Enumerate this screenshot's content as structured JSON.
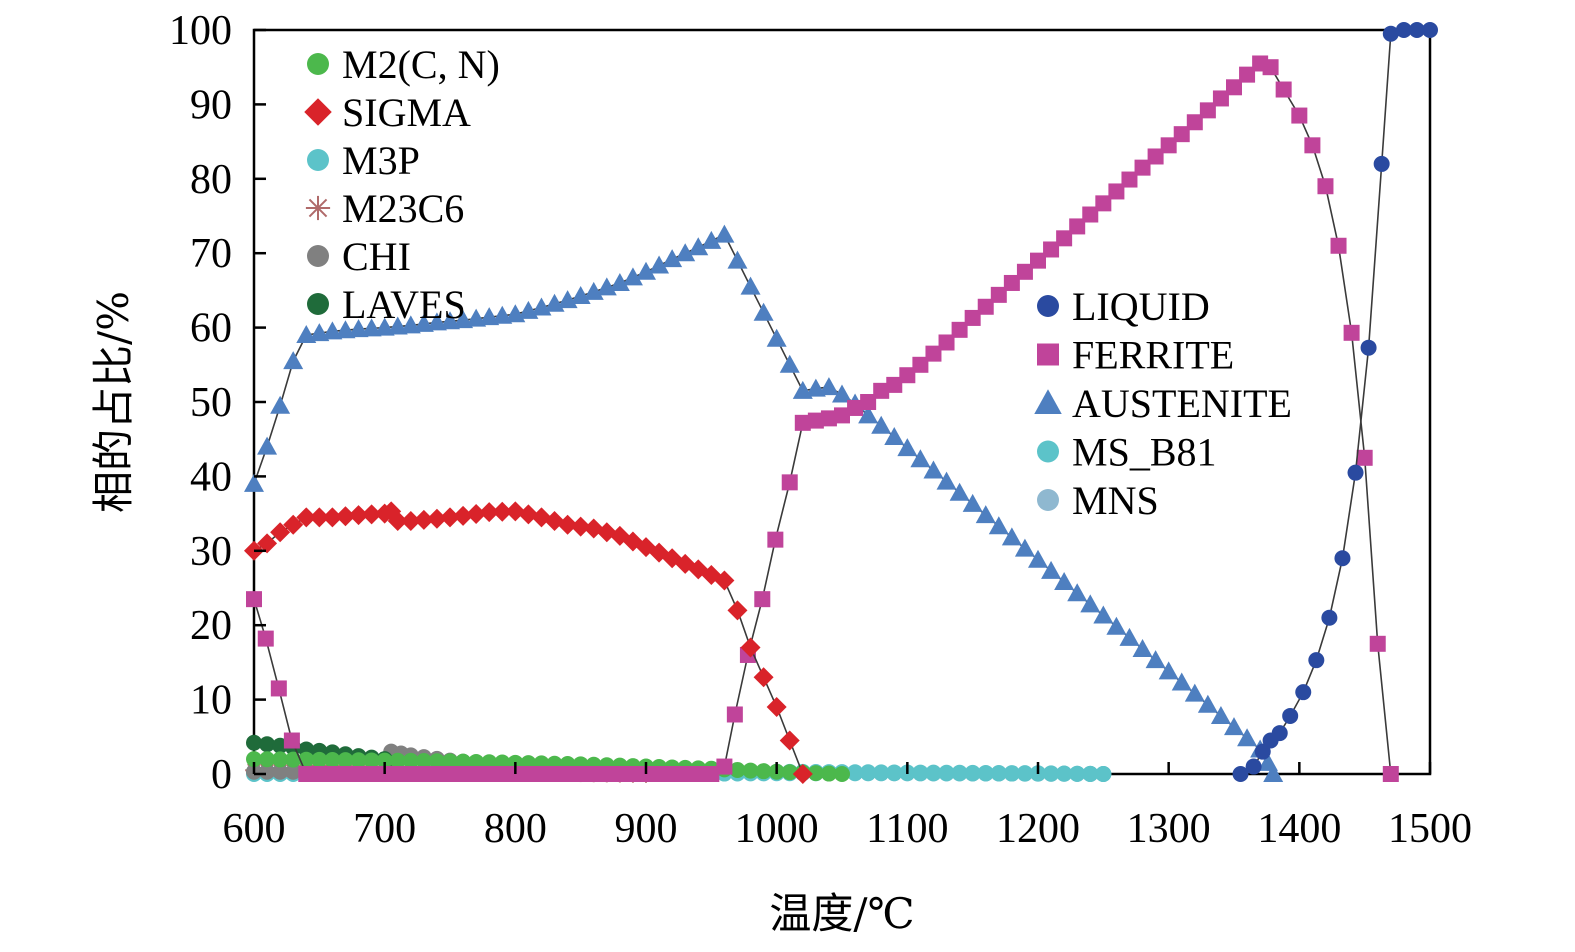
{
  "chart_data": {
    "type": "line",
    "xlabel": "温度/℃",
    "ylabel": "相的占比/%",
    "xlim": [
      600,
      1500
    ],
    "ylim": [
      0,
      100
    ],
    "xticks": [
      "600",
      "700",
      "800",
      "900",
      "1000",
      "1100",
      "1200",
      "1300",
      "1400",
      "1500"
    ],
    "yticks": [
      "0",
      "10",
      "20",
      "30",
      "40",
      "50",
      "60",
      "70",
      "80",
      "90",
      "100"
    ],
    "grid": false,
    "legends": [
      {
        "placement": "top-left",
        "entries": [
          "M2(C, N)",
          "SIGMA",
          "M3P",
          "M23C6",
          "CHI",
          "LAVES"
        ]
      },
      {
        "placement": "center-right",
        "entries": [
          "LIQUID",
          "FERRITE",
          "AUSTENITE",
          "MS_B81",
          "MNS"
        ]
      }
    ],
    "series": [
      {
        "name": "M2(C, N)",
        "marker": "circle",
        "color": "#4cb84c",
        "x": [
          600,
          650,
          700,
          750,
          800,
          850,
          900,
          950,
          1000,
          1050
        ],
        "y": [
          2.0,
          1.9,
          1.8,
          1.7,
          1.5,
          1.3,
          1.0,
          0.7,
          0.3,
          0.0
        ]
      },
      {
        "name": "SIGMA",
        "marker": "diamond",
        "color": "#d9232a",
        "x": [
          600,
          610,
          620,
          630,
          640,
          660,
          680,
          700,
          705,
          710,
          720,
          740,
          760,
          780,
          800,
          820,
          840,
          860,
          880,
          900,
          920,
          940,
          960,
          970,
          980,
          990,
          1000,
          1010,
          1020
        ],
        "y": [
          30,
          31,
          32.5,
          33.5,
          34.5,
          34.5,
          34.8,
          35,
          35.3,
          34,
          34,
          34.3,
          34.7,
          35.2,
          35.3,
          34.5,
          33.5,
          33,
          32,
          30.5,
          29,
          27.5,
          26,
          22,
          17,
          13,
          9,
          4.5,
          0
        ]
      },
      {
        "name": "M3P",
        "marker": "circle",
        "color": "#5cc3c9",
        "x": [
          600,
          700,
          800,
          900,
          1000,
          1100,
          1200,
          1250
        ],
        "y": [
          0.3,
          0.3,
          0.3,
          0.3,
          0.3,
          0.2,
          0.1,
          0.0
        ]
      },
      {
        "name": "M23C6",
        "marker": "asterisk",
        "color": "#b06a6a",
        "x": [
          600,
          650,
          700,
          750,
          800,
          850,
          900
        ],
        "y": [
          0.5,
          0.4,
          0.3,
          0.2,
          0.2,
          0.1,
          0.0
        ]
      },
      {
        "name": "CHI",
        "marker": "circle",
        "color": "#808080",
        "x": [
          600,
          700,
          705,
          720,
          750,
          800,
          850,
          900
        ],
        "y": [
          0.3,
          0.3,
          3.0,
          2.5,
          1.8,
          1.0,
          0.3,
          0.0
        ]
      },
      {
        "name": "LAVES",
        "marker": "circle",
        "color": "#1f6b3a",
        "x": [
          600,
          620,
          640,
          660,
          680,
          700,
          710
        ],
        "y": [
          4.2,
          3.8,
          3.3,
          2.9,
          2.4,
          2.0,
          0.3
        ]
      },
      {
        "name": "LIQUID",
        "marker": "circle",
        "color": "#2a4aa0",
        "x": [
          1355,
          1365,
          1372,
          1378,
          1385,
          1393,
          1403,
          1413,
          1423,
          1433,
          1443,
          1453,
          1463,
          1470,
          1480,
          1490,
          1500
        ],
        "y": [
          0,
          1,
          3,
          4.5,
          5.5,
          7.8,
          11,
          15.3,
          21,
          29,
          40.5,
          57.3,
          82,
          99.5,
          100,
          100,
          100
        ]
      },
      {
        "name": "FERRITE",
        "marker": "square",
        "color": "#c0449a",
        "x": [
          600,
          609,
          619,
          629,
          640,
          650,
          700,
          750,
          800,
          850,
          900,
          950,
          960,
          968,
          978,
          989,
          999,
          1010,
          1020,
          1030,
          1040,
          1050,
          1060,
          1070,
          1080,
          1090,
          1100,
          1110,
          1120,
          1130,
          1140,
          1150,
          1160,
          1170,
          1180,
          1190,
          1200,
          1210,
          1220,
          1230,
          1240,
          1250,
          1260,
          1270,
          1280,
          1290,
          1300,
          1310,
          1320,
          1330,
          1340,
          1350,
          1360,
          1370,
          1378,
          1388,
          1400,
          1410,
          1420,
          1430,
          1440,
          1450,
          1460,
          1470
        ],
        "y": [
          23.5,
          18.2,
          11.5,
          4.5,
          0,
          0,
          0,
          0,
          0,
          0,
          0,
          0,
          1,
          8,
          16,
          23.5,
          31.5,
          39.2,
          47.2,
          47.5,
          47.8,
          48.2,
          49.2,
          50,
          51.5,
          52.3,
          53.6,
          55,
          56.5,
          58,
          59.7,
          61.3,
          62.8,
          64.4,
          66,
          67.5,
          69,
          70.5,
          72,
          73.6,
          75.2,
          76.7,
          78.3,
          79.9,
          81.5,
          83,
          84.5,
          86,
          87.6,
          89.2,
          90.8,
          92.3,
          94,
          95.5,
          95,
          92,
          88.5,
          84.5,
          79,
          71,
          59.3,
          42.5,
          17.5,
          0
        ]
      },
      {
        "name": "AUSTENITE",
        "marker": "triangle",
        "color": "#4e7fc0",
        "x": [
          600,
          610,
          620,
          630,
          640,
          660,
          680,
          700,
          720,
          740,
          760,
          780,
          800,
          820,
          840,
          860,
          880,
          900,
          920,
          940,
          960,
          970,
          980,
          990,
          1000,
          1010,
          1020,
          1030,
          1040,
          1050,
          1060,
          1070,
          1080,
          1090,
          1100,
          1110,
          1120,
          1130,
          1140,
          1150,
          1160,
          1170,
          1180,
          1190,
          1200,
          1210,
          1220,
          1230,
          1240,
          1250,
          1260,
          1270,
          1280,
          1290,
          1300,
          1310,
          1320,
          1330,
          1340,
          1350,
          1360,
          1370,
          1376,
          1380
        ],
        "y": [
          39,
          44,
          49.5,
          55.5,
          59,
          59.5,
          59.8,
          60,
          60.3,
          60.7,
          61,
          61.4,
          61.8,
          62.7,
          63.7,
          64.8,
          66,
          67.5,
          69.2,
          70.8,
          72.5,
          69,
          65.5,
          62,
          58.5,
          55,
          51.5,
          51.8,
          52,
          51,
          49.8,
          48.2,
          46.8,
          45.3,
          43.8,
          42.3,
          40.8,
          39.3,
          37.8,
          36.3,
          34.8,
          33.3,
          31.8,
          30.3,
          28.8,
          27.3,
          25.8,
          24.3,
          22.8,
          21.3,
          19.8,
          18.3,
          16.8,
          15.3,
          13.8,
          12.3,
          10.8,
          9.3,
          7.8,
          6.3,
          4.8,
          3.3,
          1.5,
          0
        ]
      },
      {
        "name": "MS_B81",
        "marker": "circle",
        "color": "#5cc3c9",
        "x": [
          600,
          700,
          800,
          900,
          1000,
          1100,
          1200,
          1250
        ],
        "y": [
          0,
          0,
          0,
          0,
          0.1,
          0.1,
          0.05,
          0.0
        ]
      },
      {
        "name": "MNS",
        "marker": "circle",
        "color": "#8fb8d0",
        "x": [
          600,
          700,
          800,
          900,
          1000,
          1100,
          1200,
          1250
        ],
        "y": [
          0.15,
          0.15,
          0.15,
          0.15,
          0.15,
          0.1,
          0.05,
          0.0
        ]
      }
    ]
  }
}
